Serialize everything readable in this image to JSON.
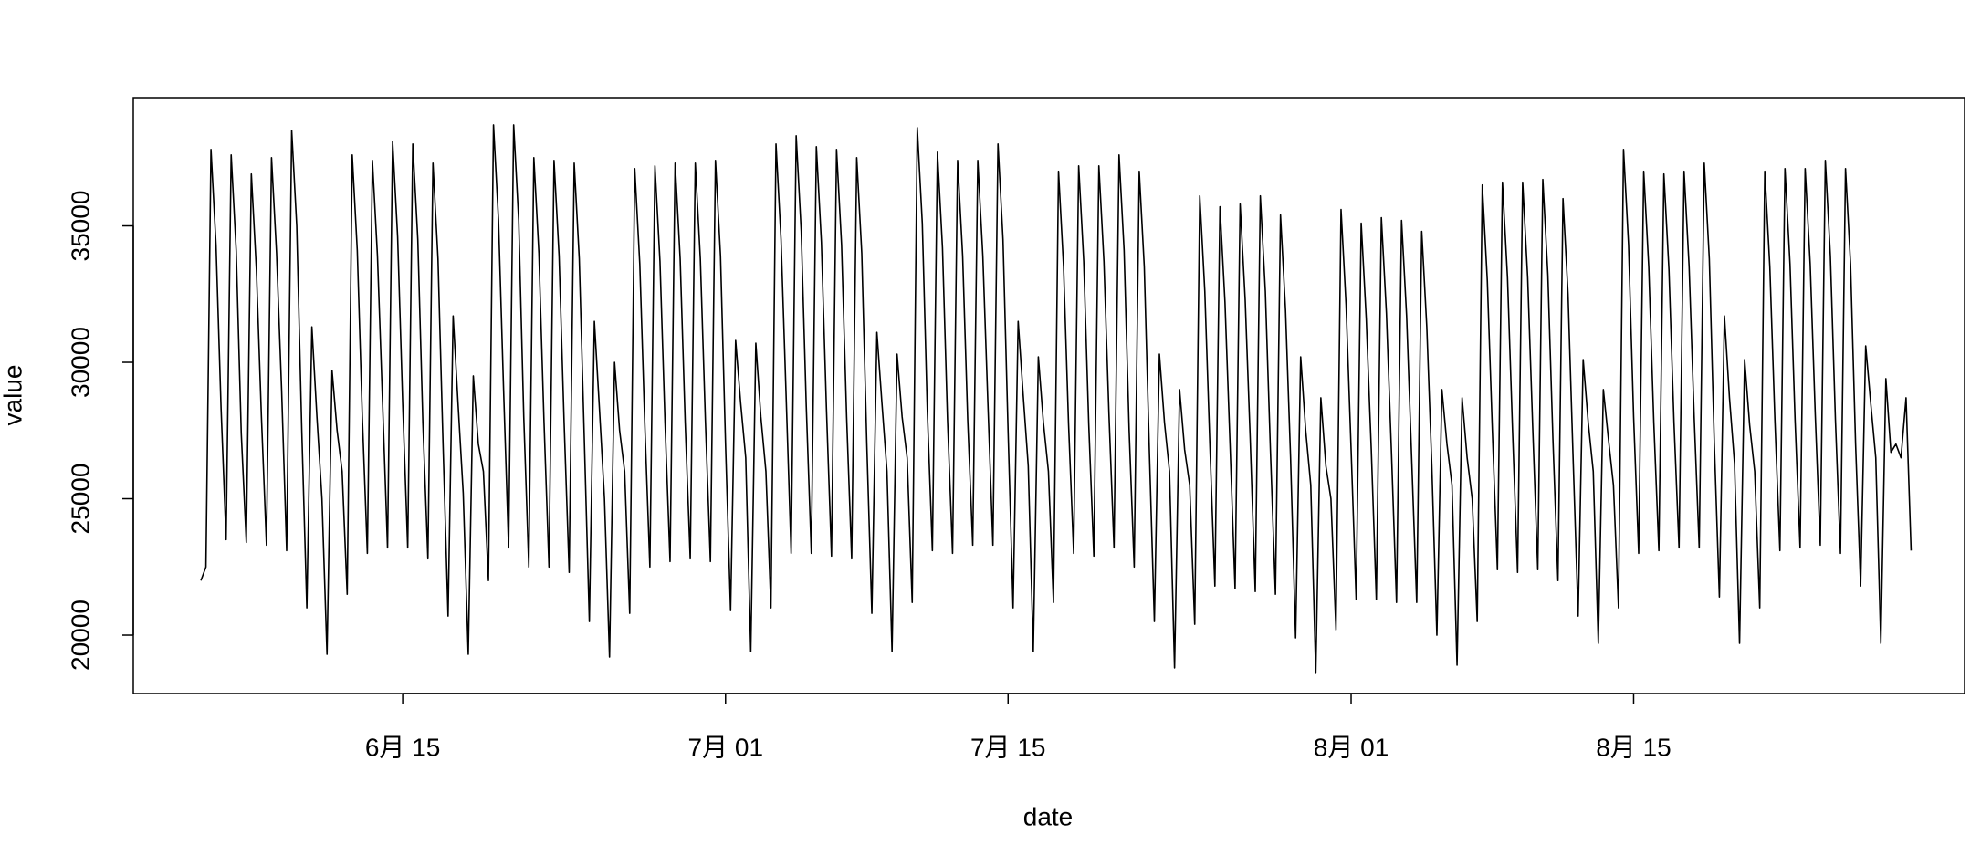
{
  "chart_data": {
    "type": "line",
    "x_label": "date",
    "y_label": "value",
    "color": "#000000",
    "xlim": [
      -13.4,
      349.6
    ],
    "ylim": [
      17860,
      39700
    ],
    "xticks": [
      {
        "value": 40,
        "label": "6月 15"
      },
      {
        "value": 104,
        "label": "7月 01"
      },
      {
        "value": 160,
        "label": "7月 15"
      },
      {
        "value": 228,
        "label": "8月 01"
      },
      {
        "value": 284,
        "label": "8月 15"
      }
    ],
    "yticks": [
      20000,
      25000,
      30000,
      35000
    ],
    "values": [
      22000,
      22500,
      37800,
      34300,
      28300,
      23500,
      37600,
      34100,
      27400,
      23400,
      36900,
      33400,
      28000,
      23300,
      37500,
      34000,
      29000,
      23100,
      38500,
      35000,
      27500,
      21000,
      31300,
      28000,
      25000,
      19300,
      29700,
      27500,
      26000,
      21500,
      37600,
      34100,
      28000,
      23000,
      37400,
      33900,
      28600,
      23200,
      38100,
      34600,
      28500,
      23200,
      38000,
      34500,
      27800,
      22800,
      37300,
      33800,
      27000,
      20700,
      31700,
      28400,
      25200,
      19300,
      29500,
      27000,
      26000,
      22000,
      38700,
      35200,
      29000,
      23200,
      38700,
      35200,
      28000,
      22500,
      37500,
      34000,
      27900,
      22500,
      37400,
      33900,
      27800,
      22300,
      37300,
      33800,
      27200,
      20500,
      31500,
      28300,
      25000,
      19200,
      30000,
      27500,
      26000,
      20800,
      37100,
      33600,
      27700,
      22500,
      37200,
      33700,
      27800,
      22700,
      37300,
      33800,
      27800,
      22800,
      37300,
      33800,
      27900,
      22700,
      37400,
      33900,
      27000,
      20900,
      30800,
      28500,
      26500,
      19400,
      30700,
      28000,
      26000,
      21000,
      38000,
      34500,
      28800,
      23000,
      38300,
      34800,
      28400,
      23000,
      37900,
      34400,
      28300,
      22900,
      37800,
      34300,
      28000,
      22800,
      37500,
      34000,
      27000,
      20800,
      31100,
      28500,
      26000,
      19400,
      30300,
      28000,
      26500,
      21200,
      38600,
      35100,
      28200,
      23100,
      37700,
      34200,
      27900,
      23000,
      37400,
      33900,
      27900,
      23300,
      37400,
      33900,
      28500,
      23300,
      38000,
      34500,
      27500,
      21000,
      31500,
      28800,
      26200,
      19400,
      30200,
      27800,
      26000,
      21200,
      37000,
      33500,
      27700,
      23000,
      37200,
      33700,
      27700,
      22900,
      37200,
      33700,
      28100,
      23200,
      37600,
      34100,
      27500,
      22500,
      37000,
      33500,
      26800,
      20500,
      30300,
      27800,
      26000,
      18800,
      29000,
      26800,
      25500,
      20400,
      36100,
      32600,
      27000,
      21800,
      35700,
      32200,
      27000,
      21700,
      35800,
      32300,
      27200,
      21600,
      36100,
      32600,
      26800,
      21500,
      35400,
      31900,
      26500,
      19900,
      30200,
      27500,
      25500,
      18600,
      28700,
      26200,
      25000,
      20200,
      35600,
      32100,
      26800,
      21300,
      35100,
      31600,
      26800,
      21300,
      35300,
      31800,
      26700,
      21200,
      35200,
      31700,
      26500,
      21200,
      34800,
      31300,
      26200,
      20000,
      29000,
      27000,
      25500,
      18900,
      28700,
      26500,
      25000,
      20500,
      36500,
      33000,
      27500,
      22400,
      36600,
      33100,
      27500,
      22300,
      36600,
      33100,
      27600,
      22400,
      36700,
      33200,
      27200,
      22000,
      36000,
      32500,
      26500,
      20700,
      30100,
      27800,
      26000,
      19700,
      29000,
      27200,
      25500,
      21000,
      37800,
      34300,
      28000,
      23000,
      37000,
      33500,
      27800,
      23100,
      36900,
      33400,
      27800,
      23200,
      37000,
      33500,
      28000,
      23200,
      37300,
      33800,
      27000,
      21400,
      31700,
      28700,
      26300,
      19700,
      30100,
      27700,
      26000,
      21000,
      37000,
      33500,
      27900,
      23100,
      37100,
      33600,
      27900,
      23200,
      37100,
      33600,
      28100,
      23300,
      37400,
      33900,
      27900,
      23000,
      37100,
      33600,
      27000,
      21800,
      30600,
      28500,
      26500,
      19700,
      29400,
      26700,
      27000,
      26500,
      28700,
      23100
    ]
  }
}
